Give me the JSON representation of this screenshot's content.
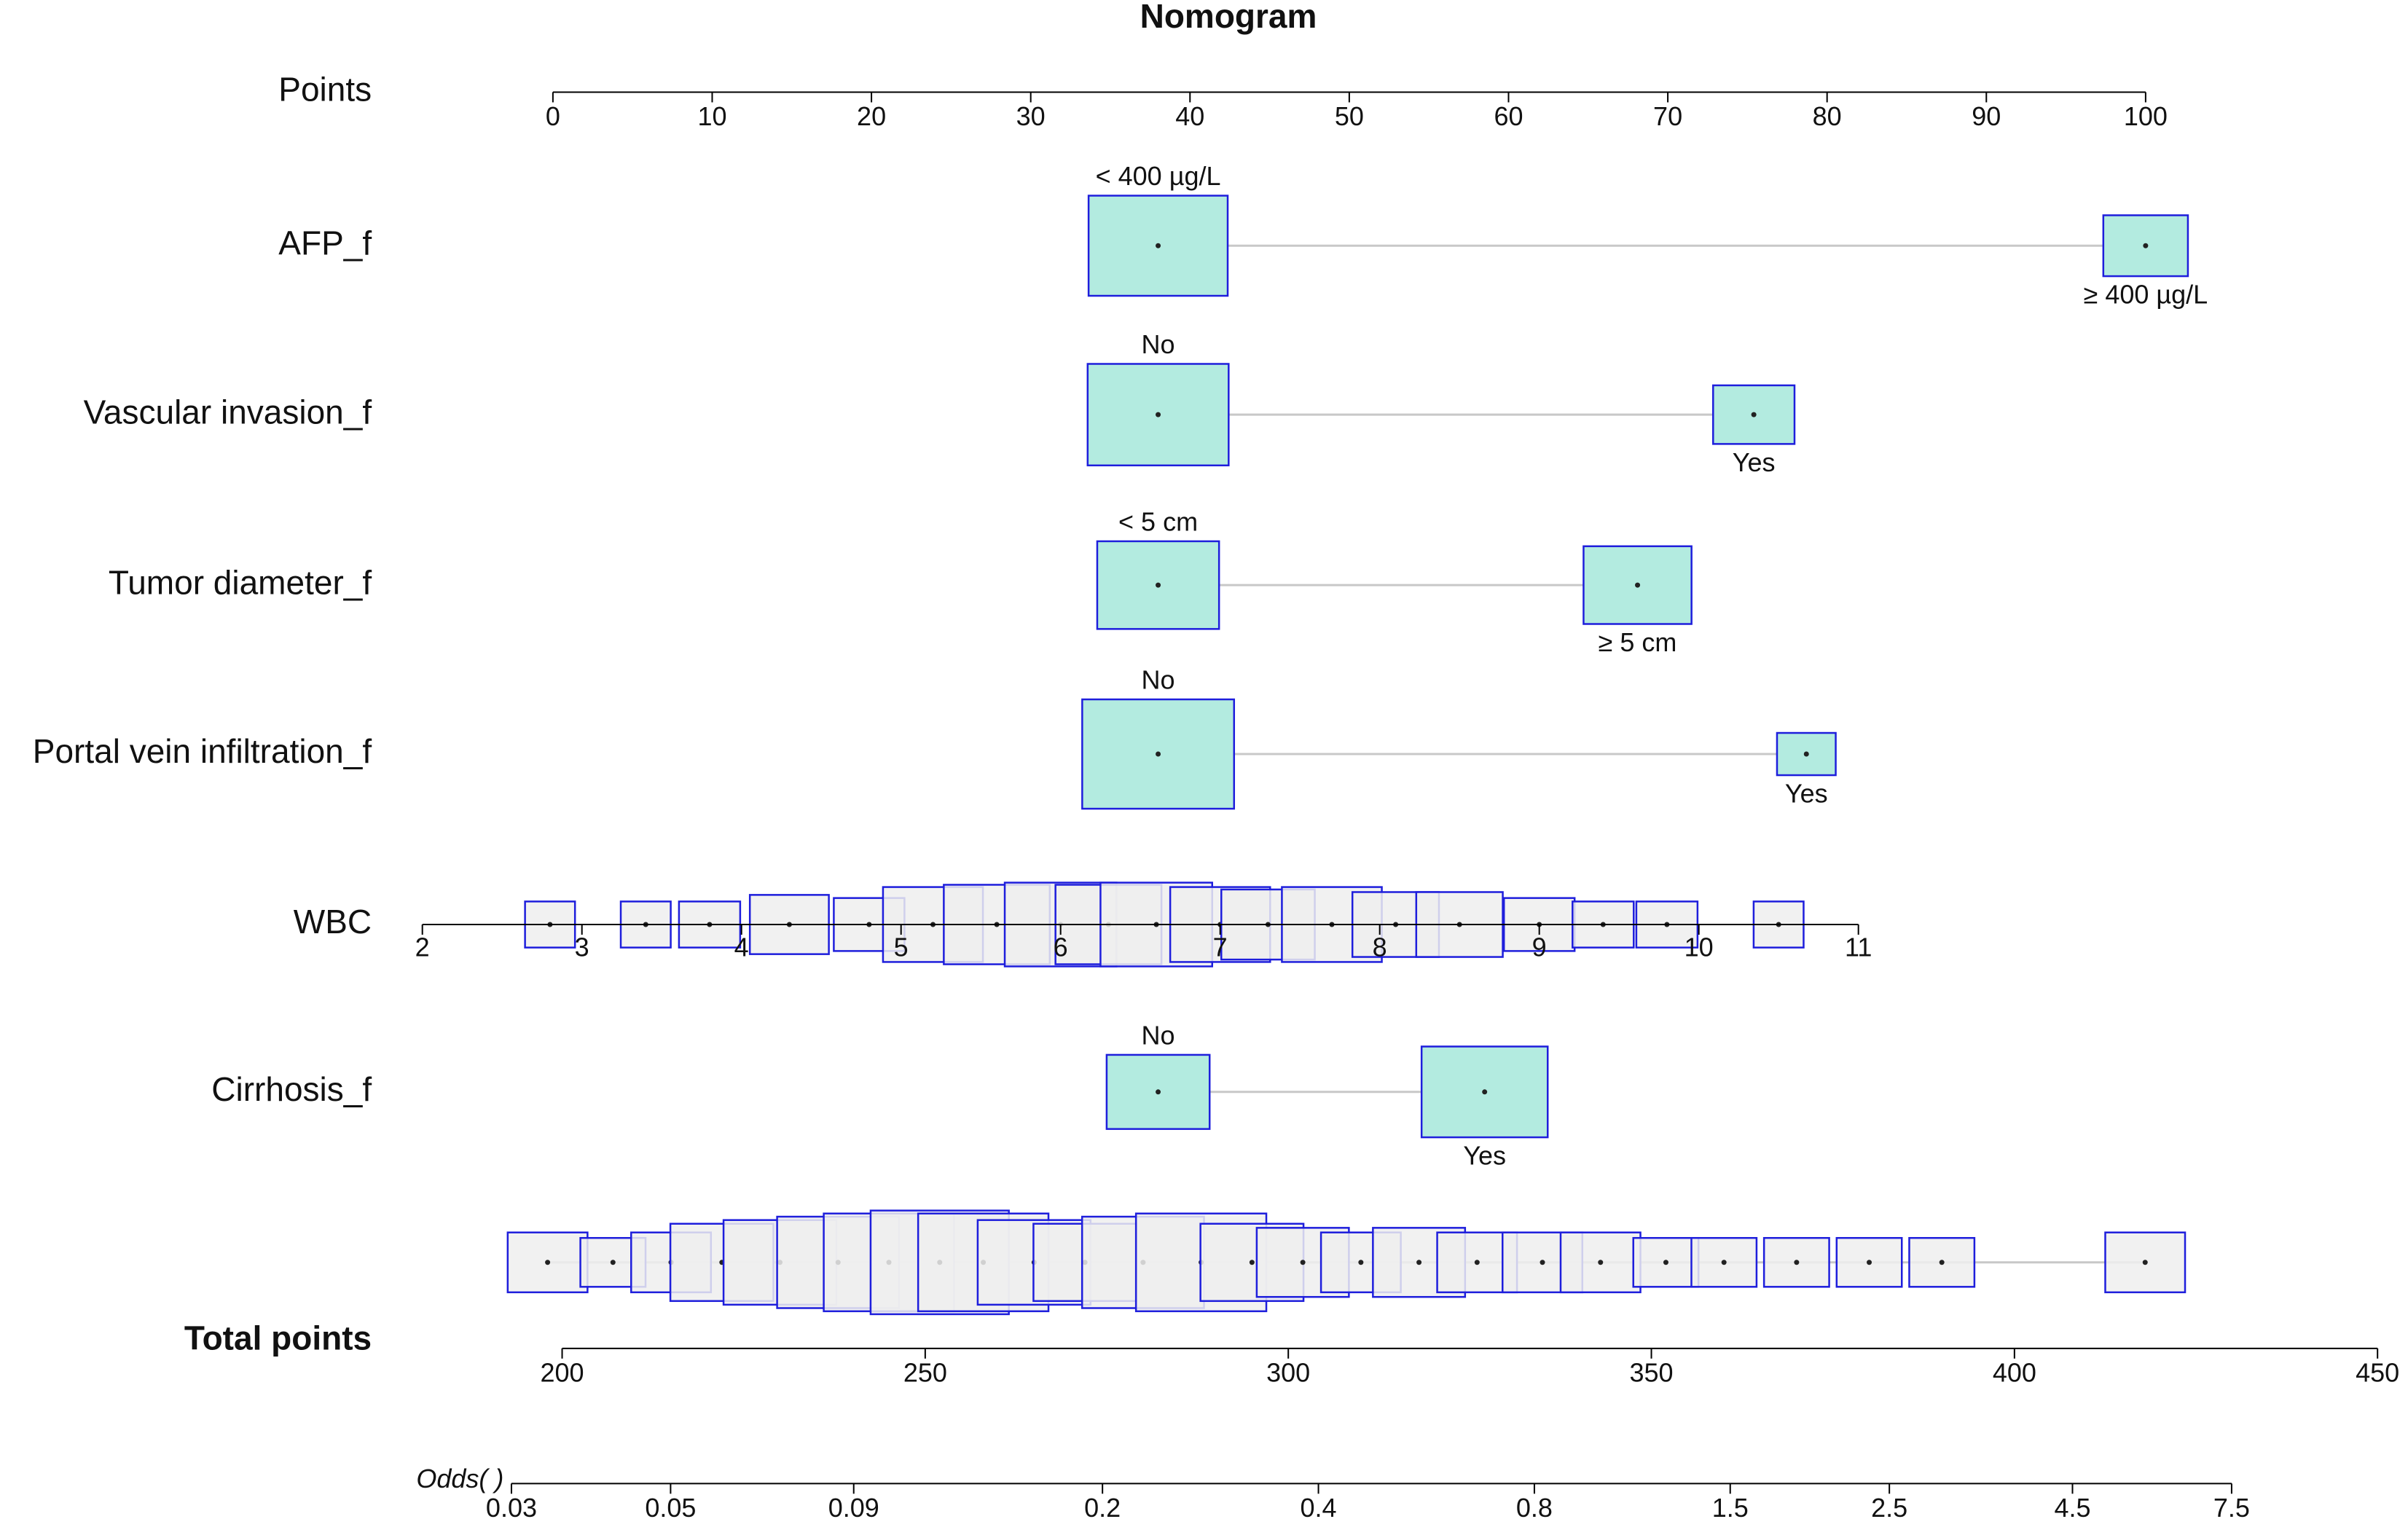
{
  "chart_data": {
    "type": "nomogram",
    "title": "Nomogram",
    "points_axis": {
      "label": "Points",
      "xlim": [
        0,
        100
      ],
      "xticks": [
        0,
        10,
        20,
        30,
        40,
        50,
        60,
        70,
        80,
        90,
        100
      ]
    },
    "variables": [
      {
        "name": "AFP_f",
        "categories": [
          "< 400 µg/L",
          "≥ 400 µg/L"
        ],
        "values": [
          38,
          100
        ],
        "freq": [
          0.73,
          0.27
        ]
      },
      {
        "name": "Vascular invasion_f",
        "categories": [
          "No",
          "Yes"
        ],
        "values": [
          38,
          75.4
        ],
        "freq": [
          0.75,
          0.25
        ]
      },
      {
        "name": "Tumor diameter_f",
        "categories": [
          "< 5 cm",
          "≥ 5 cm"
        ],
        "values": [
          38,
          68.1
        ],
        "freq": [
          0.56,
          0.44
        ]
      },
      {
        "name": "Portal vein infiltration_f",
        "categories": [
          "No",
          "Yes"
        ],
        "values": [
          38,
          78.7
        ],
        "freq": [
          0.87,
          0.13
        ]
      },
      {
        "name": "Cirrhosis_f",
        "categories": [
          "No",
          "Yes"
        ],
        "values": [
          38,
          58.5
        ],
        "freq": [
          0.4,
          0.6
        ]
      }
    ],
    "wbc": {
      "name": "WBC",
      "xlim": [
        2,
        11
      ],
      "xticks": [
        2,
        3,
        4,
        5,
        6,
        7,
        8,
        9,
        10,
        11
      ],
      "values": [
        2.8,
        3.4,
        3.8,
        4.3,
        4.8,
        5.2,
        5.6,
        6.0,
        6.3,
        6.6,
        7.0,
        7.3,
        7.7,
        8.1,
        8.5,
        9.0,
        9.4,
        9.8,
        10.5
      ],
      "freq": [
        0.02,
        0.02,
        0.03,
        0.05,
        0.04,
        0.08,
        0.09,
        0.1,
        0.09,
        0.1,
        0.08,
        0.07,
        0.08,
        0.06,
        0.06,
        0.04,
        0.03,
        0.03,
        0.02
      ]
    },
    "total": {
      "label": "Total points",
      "xlim": [
        200,
        450
      ],
      "xticks": [
        200,
        250,
        300,
        350,
        400,
        450
      ],
      "values": [
        198,
        207,
        215,
        222,
        230,
        238,
        245,
        252,
        258,
        265,
        272,
        280,
        288,
        295,
        302,
        310,
        318,
        326,
        335,
        343,
        352,
        360,
        370,
        380,
        390,
        418
      ],
      "freq": [
        0.03,
        0.02,
        0.03,
        0.05,
        0.06,
        0.07,
        0.08,
        0.09,
        0.08,
        0.06,
        0.05,
        0.07,
        0.08,
        0.05,
        0.04,
        0.03,
        0.04,
        0.03,
        0.03,
        0.03,
        0.02,
        0.02,
        0.02,
        0.02,
        0.02,
        0.03
      ]
    },
    "odds": {
      "label": "Odds( )",
      "xlim": [
        0.03,
        7.5
      ],
      "xticks": [
        0.03,
        0.05,
        0.09,
        0.2,
        0.4,
        0.8,
        1.5,
        2.5,
        4.5,
        7.5
      ],
      "log": true
    },
    "box_color": "#b3ebe0",
    "dist_color": "#eeeeee",
    "edge_color": "#1e1edc"
  }
}
